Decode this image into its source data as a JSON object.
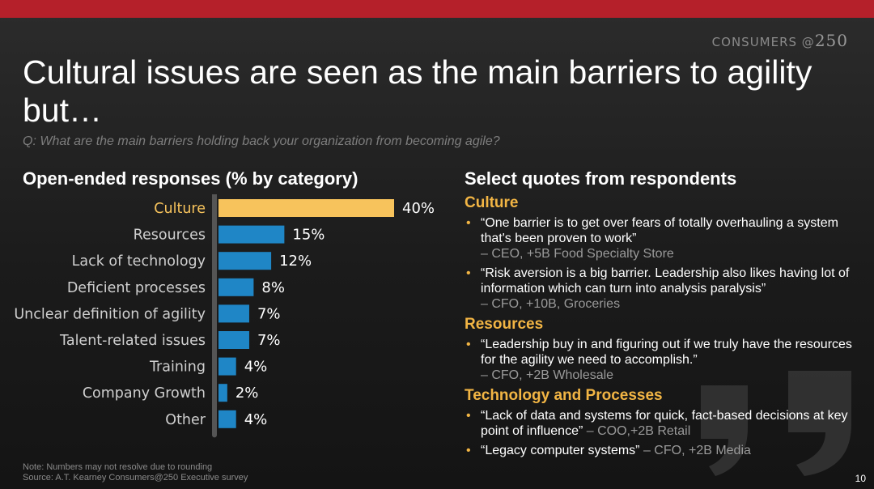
{
  "header": {
    "brand_prefix": "CONSUMERS @",
    "brand_number": "250",
    "title": "Cultural issues are seen as the main barriers to agility but…",
    "subtitle": "Q: What are the main barriers holding back your organization from becoming agile?"
  },
  "colors": {
    "top_bar": "#b5202a",
    "highlight_bar": "#f7c35c",
    "bar": "#1f86c6",
    "quote_category": "#f2b544"
  },
  "chart_title": "Open-ended responses (% by category)",
  "chart_data": {
    "type": "bar",
    "orientation": "horizontal",
    "title": "Open-ended responses (% by category)",
    "categories": [
      "Culture",
      "Resources",
      "Lack of technology",
      "Deficient processes",
      "Unclear definition of agility",
      "Talent-related issues",
      "Training",
      "Company Growth",
      "Other"
    ],
    "values": [
      40,
      15,
      12,
      8,
      7,
      7,
      4,
      2,
      4
    ],
    "value_labels": [
      "40%",
      "15%",
      "12%",
      "8%",
      "7%",
      "7%",
      "4%",
      "2%",
      "4%"
    ],
    "highlight_index": 0,
    "xlim": [
      0,
      40
    ],
    "grid": false,
    "legend": "none"
  },
  "quotes_title": "Select quotes from respondents",
  "quotes": [
    {
      "category": "Culture",
      "items": [
        {
          "text": "“One barrier is to get over fears of totally overhauling a system that's been proven to work”",
          "attribution": "– CEO, +5B Food Specialty Store"
        },
        {
          "text": "“Risk aversion is a big barrier. Leadership also likes having lot of information which can turn into analysis paralysis”",
          "attribution": "– CFO, +10B, Groceries"
        }
      ]
    },
    {
      "category": "Resources",
      "items": [
        {
          "text": "“Leadership buy in and figuring out if we truly have the resources for the agility we need to accomplish.”",
          "attribution": "– CFO, +2B Wholesale"
        }
      ]
    },
    {
      "category": "Technology and Processes",
      "items": [
        {
          "text": "“Lack of data and systems for quick, fact-based decisions at key point of influence”",
          "attribution": "– COO,+2B Retail"
        },
        {
          "text": "“Legacy computer systems”",
          "attribution": "– CFO, +2B Media"
        }
      ]
    }
  ],
  "footer": {
    "note": "Note: Numbers may not resolve due to rounding",
    "source": "Source: A.T. Kearney Consumers@250 Executive survey",
    "page_number": "10"
  }
}
